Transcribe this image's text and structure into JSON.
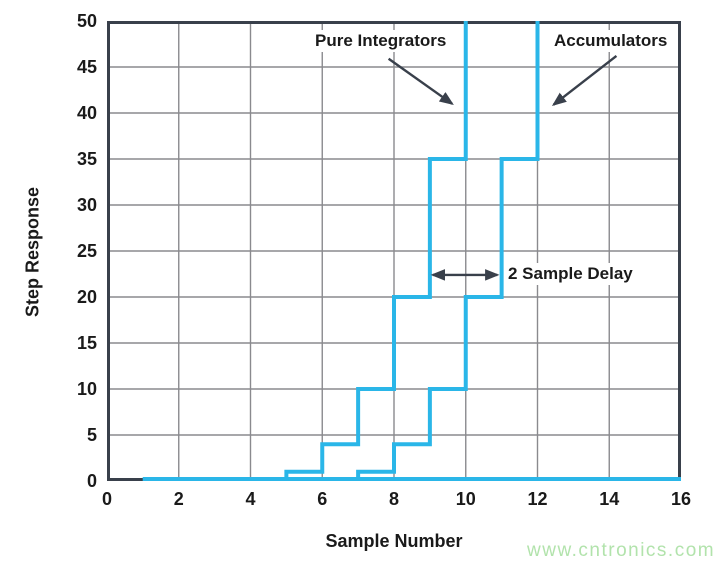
{
  "colors": {
    "curve": "#2ab6e8",
    "grid": "#8a8a8e",
    "axis": "#39404b",
    "text": "#1a1a1a",
    "watermark": "#b2e3ac"
  },
  "watermark": {
    "text": "www.cntronics.com"
  },
  "chart_data": {
    "type": "line",
    "subtype": "step",
    "title": "",
    "xlabel": "Sample Number",
    "ylabel": "Step Response",
    "xlim": [
      0,
      16
    ],
    "ylim": [
      0,
      50
    ],
    "xticks": [
      0,
      2,
      4,
      6,
      8,
      10,
      12,
      14,
      16
    ],
    "yticks": [
      0,
      5,
      10,
      15,
      20,
      25,
      30,
      35,
      40,
      45,
      50
    ],
    "grid": true,
    "legend_position": "none",
    "baseline": {
      "from_x": 1,
      "to_x": 16,
      "y": 0
    },
    "series": [
      {
        "name": "Pure Integrators",
        "steps": [
          [
            1,
            0
          ],
          [
            5,
            1
          ],
          [
            6,
            4
          ],
          [
            7,
            10
          ],
          [
            8,
            20
          ],
          [
            9,
            35
          ]
        ],
        "offscale_rise_x": 10
      },
      {
        "name": "Accumulators",
        "steps": [
          [
            1,
            0
          ],
          [
            7,
            1
          ],
          [
            8,
            4
          ],
          [
            9,
            10
          ],
          [
            10,
            20
          ],
          [
            11,
            35
          ]
        ],
        "offscale_rise_x": 12
      }
    ],
    "annotations": [
      {
        "label": "Pure Integrators",
        "arrow_from": [
          7.85,
          45.9
        ],
        "arrow_to": [
          9.62,
          41.0
        ],
        "double_headed": false
      },
      {
        "label": "Accumulators",
        "arrow_from": [
          14.2,
          46.2
        ],
        "arrow_to": [
          12.45,
          40.9
        ],
        "double_headed": false
      },
      {
        "label": "2 Sample Delay",
        "arrow_from": [
          9.08,
          22.4
        ],
        "arrow_to": [
          10.88,
          22.4
        ],
        "double_headed": true
      }
    ]
  }
}
